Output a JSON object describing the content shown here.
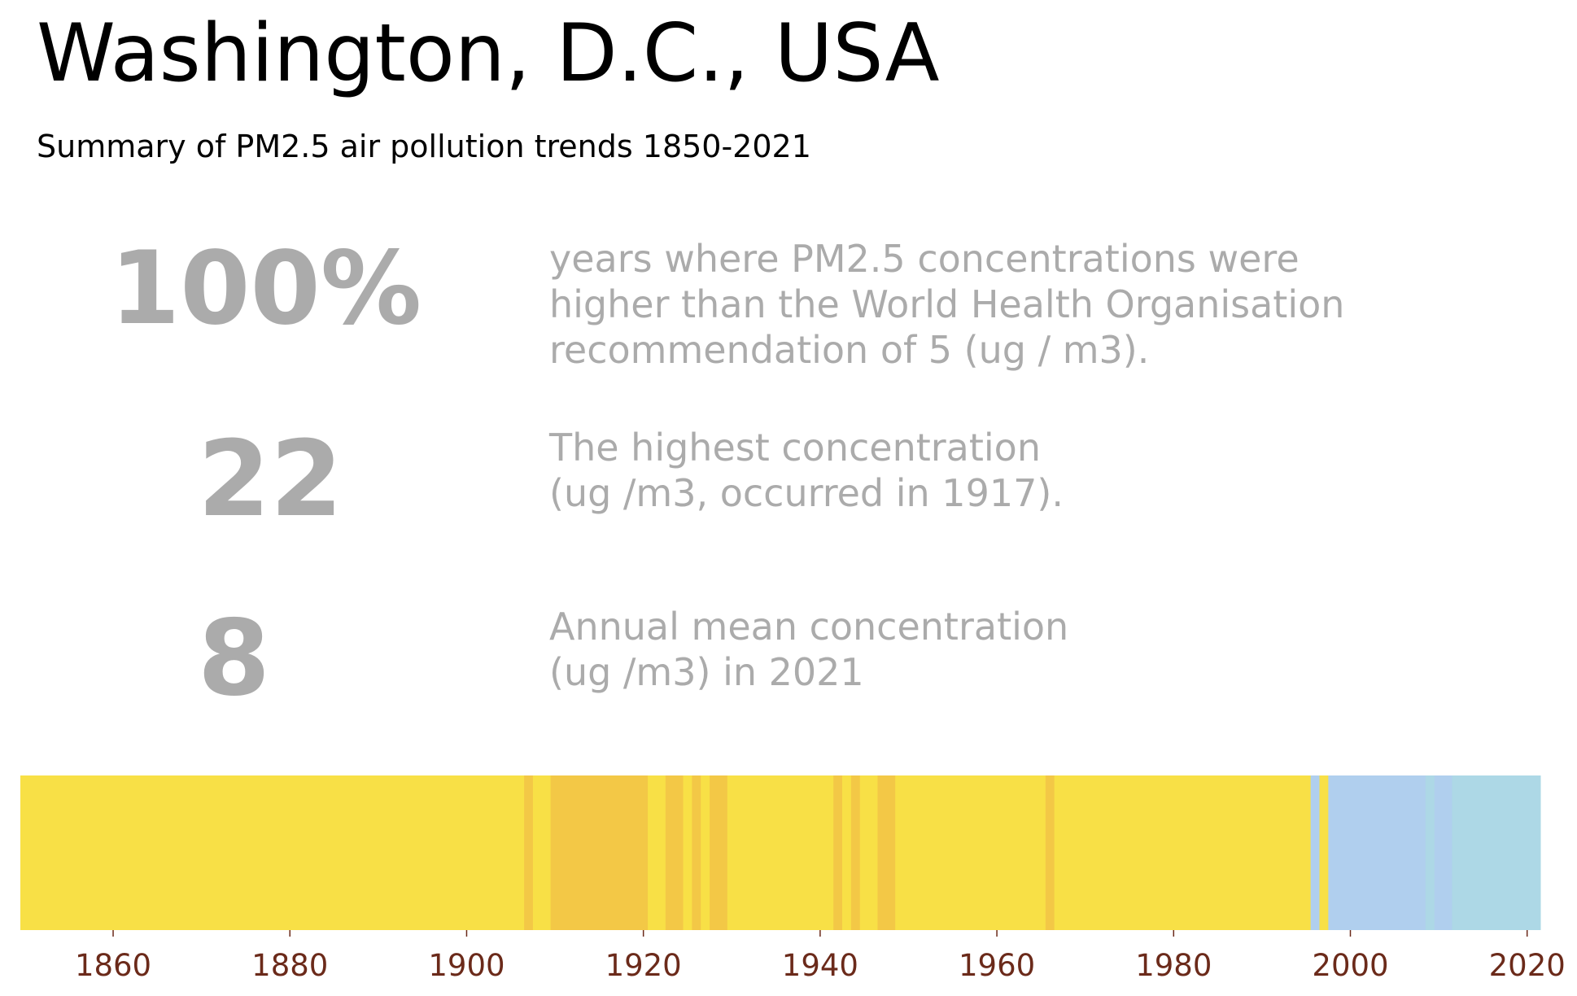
{
  "header": {
    "title": "Washington, D.C., USA",
    "subtitle": "Summary of PM2.5 air pollution trends 1850-2021"
  },
  "stats": [
    {
      "value": "100%",
      "lines": [
        "years where PM2.5 concentrations were",
        "higher than the World Health Organisation",
        "recommendation of 5 (ug / m3)."
      ]
    },
    {
      "value": "22",
      "lines": [
        "The highest concentration",
        "(ug /m3, occurred in 1917)."
      ]
    },
    {
      "value": "8",
      "lines": [
        "Annual mean concentration",
        "(ug /m3) in 2021"
      ]
    }
  ],
  "chart_data": {
    "type": "heatmap",
    "description_of_encoding": "warming-stripe style: each vertical stripe is one year, coloured by PM2.5 concentration band",
    "x_range": [
      1850,
      2021
    ],
    "x_ticks": [
      1860,
      1880,
      1900,
      1920,
      1940,
      1960,
      1980,
      2000,
      2020
    ],
    "tick_color": "#6b2a1a",
    "colors": {
      "band_yellow": "#f8e046",
      "band_orange": "#f3c846",
      "band_blue": "#b0cfee",
      "band_lightblue": "#add8e6"
    },
    "segments": [
      {
        "from": 1850,
        "to": 1906,
        "band": "band_yellow"
      },
      {
        "from": 1907,
        "to": 1907,
        "band": "band_orange"
      },
      {
        "from": 1908,
        "to": 1909,
        "band": "band_yellow"
      },
      {
        "from": 1910,
        "to": 1920,
        "band": "band_orange"
      },
      {
        "from": 1921,
        "to": 1922,
        "band": "band_yellow"
      },
      {
        "from": 1923,
        "to": 1924,
        "band": "band_orange"
      },
      {
        "from": 1925,
        "to": 1925,
        "band": "band_yellow"
      },
      {
        "from": 1926,
        "to": 1926,
        "band": "band_orange"
      },
      {
        "from": 1927,
        "to": 1927,
        "band": "band_yellow"
      },
      {
        "from": 1928,
        "to": 1929,
        "band": "band_orange"
      },
      {
        "from": 1930,
        "to": 1941,
        "band": "band_yellow"
      },
      {
        "from": 1942,
        "to": 1942,
        "band": "band_orange"
      },
      {
        "from": 1943,
        "to": 1943,
        "band": "band_yellow"
      },
      {
        "from": 1944,
        "to": 1944,
        "band": "band_orange"
      },
      {
        "from": 1945,
        "to": 1946,
        "band": "band_yellow"
      },
      {
        "from": 1947,
        "to": 1948,
        "band": "band_orange"
      },
      {
        "from": 1949,
        "to": 1965,
        "band": "band_yellow"
      },
      {
        "from": 1966,
        "to": 1966,
        "band": "band_orange"
      },
      {
        "from": 1967,
        "to": 1995,
        "band": "band_yellow"
      },
      {
        "from": 1996,
        "to": 1996,
        "band": "band_blue"
      },
      {
        "from": 1997,
        "to": 1997,
        "band": "band_yellow"
      },
      {
        "from": 1998,
        "to": 2008,
        "band": "band_blue"
      },
      {
        "from": 2009,
        "to": 2009,
        "band": "band_lightblue"
      },
      {
        "from": 2010,
        "to": 2011,
        "band": "band_blue"
      },
      {
        "from": 2012,
        "to": 2021,
        "band": "band_lightblue"
      }
    ]
  }
}
